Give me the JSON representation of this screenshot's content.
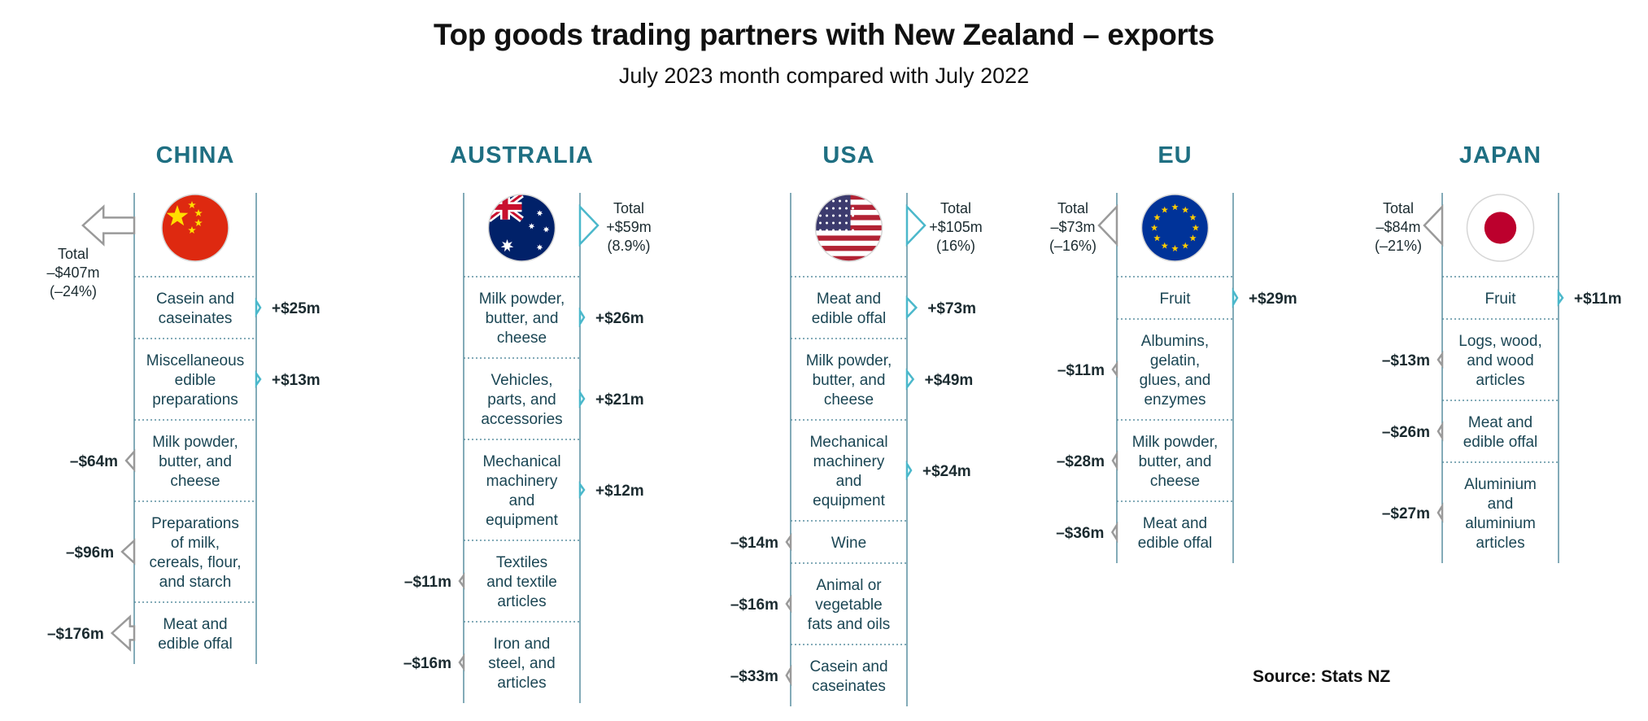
{
  "title": "Top goods trading partners with New Zealand – exports",
  "subtitle": "July 2023 month compared with July 2022",
  "source": "Source: Stats NZ",
  "colors": {
    "country_name": "#1f6f82",
    "category_text": "#1b4654",
    "increase": "#4bb8cb",
    "decrease": "#9a9a9a",
    "divider": "#5a8fa0"
  },
  "chart_data": [
    {
      "type": "bar",
      "country": "CHINA",
      "flag": "china-flag",
      "total": {
        "value_m": -407,
        "label": "–$407m",
        "pct_label": "(–24%)",
        "pct": -24
      },
      "categories": [
        {
          "label": "Casein and caseinates",
          "lines": [
            "Casein and",
            "caseinates"
          ],
          "value_m": 25,
          "value_label": "+$25m"
        },
        {
          "label": "Miscellaneous edible preparations",
          "lines": [
            "Miscellaneous",
            "edible",
            "preparations"
          ],
          "value_m": 13,
          "value_label": "+$13m"
        },
        {
          "label": "Milk powder, butter, and cheese",
          "lines": [
            "Milk powder,",
            "butter, and",
            "cheese"
          ],
          "value_m": -64,
          "value_label": "–$64m"
        },
        {
          "label": "Preparations of milk, cereals, flour, and starch",
          "lines": [
            "Preparations",
            "of milk,",
            "cereals, flour,",
            "and starch"
          ],
          "value_m": -96,
          "value_label": "–$96m"
        },
        {
          "label": "Meat and edible offal",
          "lines": [
            "Meat and",
            "edible offal"
          ],
          "value_m": -176,
          "value_label": "–$176m"
        }
      ]
    },
    {
      "type": "bar",
      "country": "AUSTRALIA",
      "flag": "australia-flag",
      "total": {
        "value_m": 59,
        "label": "+$59m",
        "pct_label": "(8.9%)",
        "pct": 8.9
      },
      "categories": [
        {
          "label": "Milk powder, butter, and cheese",
          "lines": [
            "Milk powder,",
            "butter, and",
            "cheese"
          ],
          "value_m": 26,
          "value_label": "+$26m"
        },
        {
          "label": "Vehicles, parts, and accessories",
          "lines": [
            "Vehicles,",
            "parts, and",
            "accessories"
          ],
          "value_m": 21,
          "value_label": "+$21m"
        },
        {
          "label": "Mechanical machinery and equipment",
          "lines": [
            "Mechanical",
            "machinery",
            "and",
            "equipment"
          ],
          "value_m": 12,
          "value_label": "+$12m"
        },
        {
          "label": "Textiles and textile articles",
          "lines": [
            "Textiles",
            "and textile",
            "articles"
          ],
          "value_m": -11,
          "value_label": "–$11m"
        },
        {
          "label": "Iron and steel, and articles",
          "lines": [
            "Iron and",
            "steel, and",
            "articles"
          ],
          "value_m": -16,
          "value_label": "–$16m"
        }
      ]
    },
    {
      "type": "bar",
      "country": "USA",
      "flag": "usa-flag",
      "total": {
        "value_m": 105,
        "label": "+$105m",
        "pct_label": "(16%)",
        "pct": 16
      },
      "categories": [
        {
          "label": "Meat and edible offal",
          "lines": [
            "Meat and",
            "edible offal"
          ],
          "value_m": 73,
          "value_label": "+$73m"
        },
        {
          "label": "Milk powder, butter, and cheese",
          "lines": [
            "Milk powder,",
            "butter, and",
            "cheese"
          ],
          "value_m": 49,
          "value_label": "+$49m"
        },
        {
          "label": "Mechanical machinery and equipment",
          "lines": [
            "Mechanical",
            "machinery",
            "and",
            "equipment"
          ],
          "value_m": 24,
          "value_label": "+$24m"
        },
        {
          "label": "Wine",
          "lines": [
            "Wine"
          ],
          "value_m": -14,
          "value_label": "–$14m"
        },
        {
          "label": "Animal or vegetable fats and oils",
          "lines": [
            "Animal or",
            "vegetable",
            "fats and oils"
          ],
          "value_m": -16,
          "value_label": "–$16m"
        },
        {
          "label": "Casein and caseinates",
          "lines": [
            "Casein and",
            "caseinates"
          ],
          "value_m": -33,
          "value_label": "–$33m"
        }
      ]
    },
    {
      "type": "bar",
      "country": "EU",
      "flag": "eu-flag",
      "total": {
        "value_m": -73,
        "label": "–$73m",
        "pct_label": "(–16%)",
        "pct": -16
      },
      "categories": [
        {
          "label": "Fruit",
          "lines": [
            "Fruit"
          ],
          "value_m": 29,
          "value_label": "+$29m"
        },
        {
          "label": "Albumins, gelatin, glues, and enzymes",
          "lines": [
            "Albumins,",
            "gelatin,",
            "glues, and",
            "enzymes"
          ],
          "value_m": -11,
          "value_label": "–$11m"
        },
        {
          "label": "Milk powder, butter, and cheese",
          "lines": [
            "Milk powder,",
            "butter, and",
            "cheese"
          ],
          "value_m": -28,
          "value_label": "–$28m"
        },
        {
          "label": "Meat and edible offal",
          "lines": [
            "Meat and",
            "edible offal"
          ],
          "value_m": -36,
          "value_label": "–$36m"
        }
      ]
    },
    {
      "type": "bar",
      "country": "JAPAN",
      "flag": "japan-flag",
      "total": {
        "value_m": -84,
        "label": "–$84m",
        "pct_label": "(–21%)",
        "pct": -21
      },
      "categories": [
        {
          "label": "Fruit",
          "lines": [
            "Fruit"
          ],
          "value_m": 11,
          "value_label": "+$11m"
        },
        {
          "label": "Logs, wood, and wood articles",
          "lines": [
            "Logs, wood,",
            "and wood",
            "articles"
          ],
          "value_m": -13,
          "value_label": "–$13m"
        },
        {
          "label": "Meat and edible offal",
          "lines": [
            "Meat and",
            "edible offal"
          ],
          "value_m": -26,
          "value_label": "–$26m"
        },
        {
          "label": "Aluminium and aluminium articles",
          "lines": [
            "Aluminium",
            "and",
            "aluminium",
            "articles"
          ],
          "value_m": -27,
          "value_label": "–$27m"
        }
      ]
    }
  ],
  "total_label": "Total"
}
